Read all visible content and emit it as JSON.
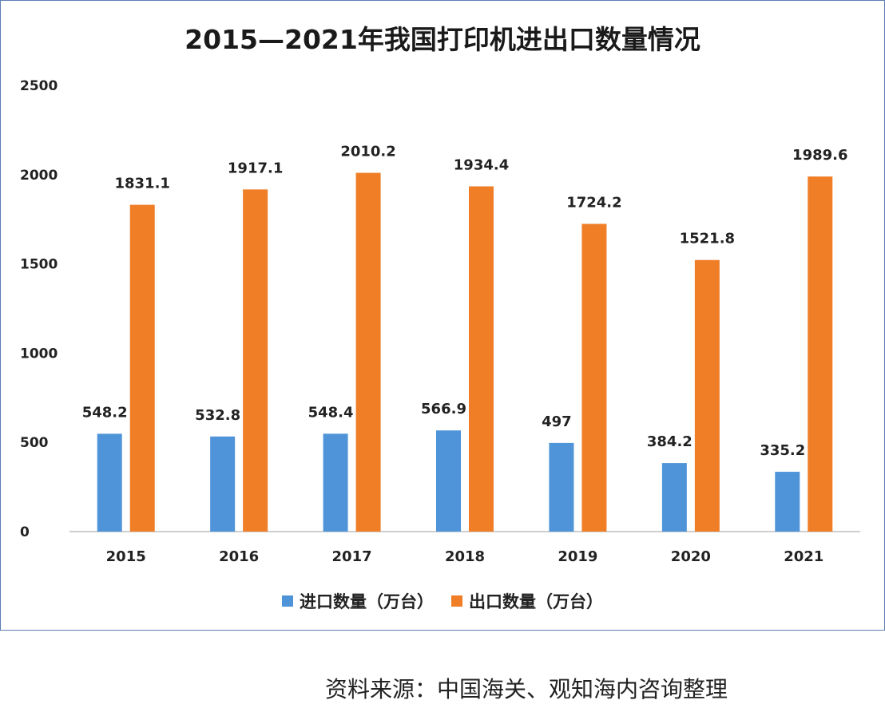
{
  "chart_data": {
    "type": "bar",
    "title": "2015—2021年我国打印机进出口数量情况",
    "categories": [
      "2015",
      "2016",
      "2017",
      "2018",
      "2019",
      "2020",
      "2021"
    ],
    "series": [
      {
        "name": "进口数量（万台）",
        "color": "#4f94d8",
        "values": [
          548.2,
          532.8,
          548.4,
          566.9,
          497,
          384.2,
          335.2
        ]
      },
      {
        "name": "出口数量（万台）",
        "color": "#ef7e27",
        "values": [
          1831.1,
          1917.1,
          2010.2,
          1934.4,
          1724.2,
          1521.8,
          1989.6
        ]
      }
    ],
    "data_labels": [
      [
        "548.2",
        "532.8",
        "548.4",
        "566.9",
        "497",
        "384.2",
        "335.2"
      ],
      [
        "1831.1",
        "1917.1",
        "2010.2",
        "1934.4",
        "1724.2",
        "1521.8",
        "1989.6"
      ]
    ],
    "ylim": [
      0,
      2500
    ],
    "yticks": [
      "0",
      "500",
      "1000",
      "1500",
      "2000",
      "2500"
    ],
    "grid": false,
    "legend_position": "bottom"
  },
  "source": "资料来源：中国海关、观知海内咨询整理"
}
